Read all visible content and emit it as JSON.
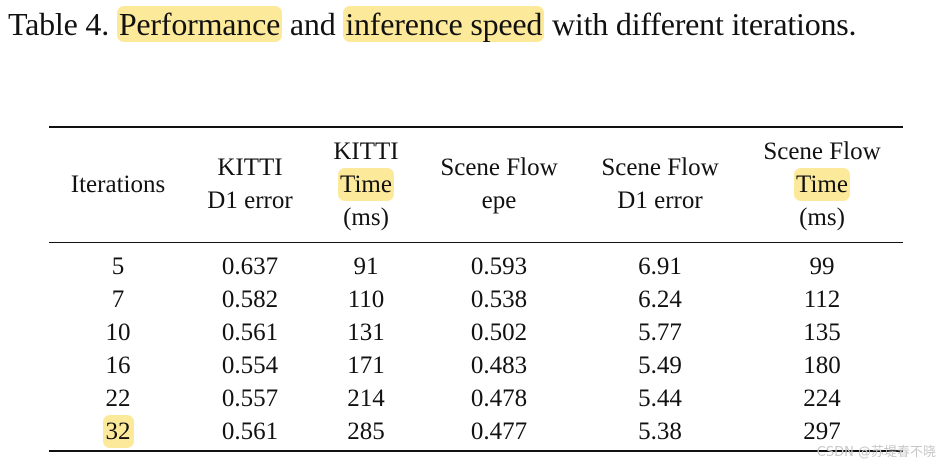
{
  "caption": {
    "prefix": "Table 4. ",
    "hl1": "Performance",
    "mid": " and ",
    "hl2": "inference speed",
    "suffix": " with different iterations."
  },
  "table": {
    "headers": [
      {
        "lines": [
          "Iterations"
        ]
      },
      {
        "lines": [
          "KITTI",
          "D1 error"
        ]
      },
      {
        "lines": [
          "KITTI",
          "Time",
          "(ms)"
        ],
        "highlight_line": 1
      },
      {
        "lines": [
          "Scene Flow",
          "epe"
        ]
      },
      {
        "lines": [
          "Scene Flow",
          "D1 error"
        ]
      },
      {
        "lines": [
          "Scene Flow",
          "Time",
          "(ms)"
        ],
        "highlight_line": 1
      }
    ],
    "rows": [
      [
        "5",
        "0.637",
        "91",
        "0.593",
        "6.91",
        "99"
      ],
      [
        "7",
        "0.582",
        "110",
        "0.538",
        "6.24",
        "112"
      ],
      [
        "10",
        "0.561",
        "131",
        "0.502",
        "5.77",
        "135"
      ],
      [
        "16",
        "0.554",
        "171",
        "0.483",
        "5.49",
        "180"
      ],
      [
        "22",
        "0.557",
        "214",
        "0.478",
        "5.44",
        "224"
      ],
      [
        "32",
        "0.561",
        "285",
        "0.477",
        "5.38",
        "297"
      ]
    ],
    "highlighted_cells": [
      [
        5,
        0
      ]
    ]
  },
  "watermark": "CSDN @苏堤春不晓",
  "colors": {
    "highlight": "#fde99a",
    "text": "#111111",
    "watermark": "#c8c8c8"
  }
}
